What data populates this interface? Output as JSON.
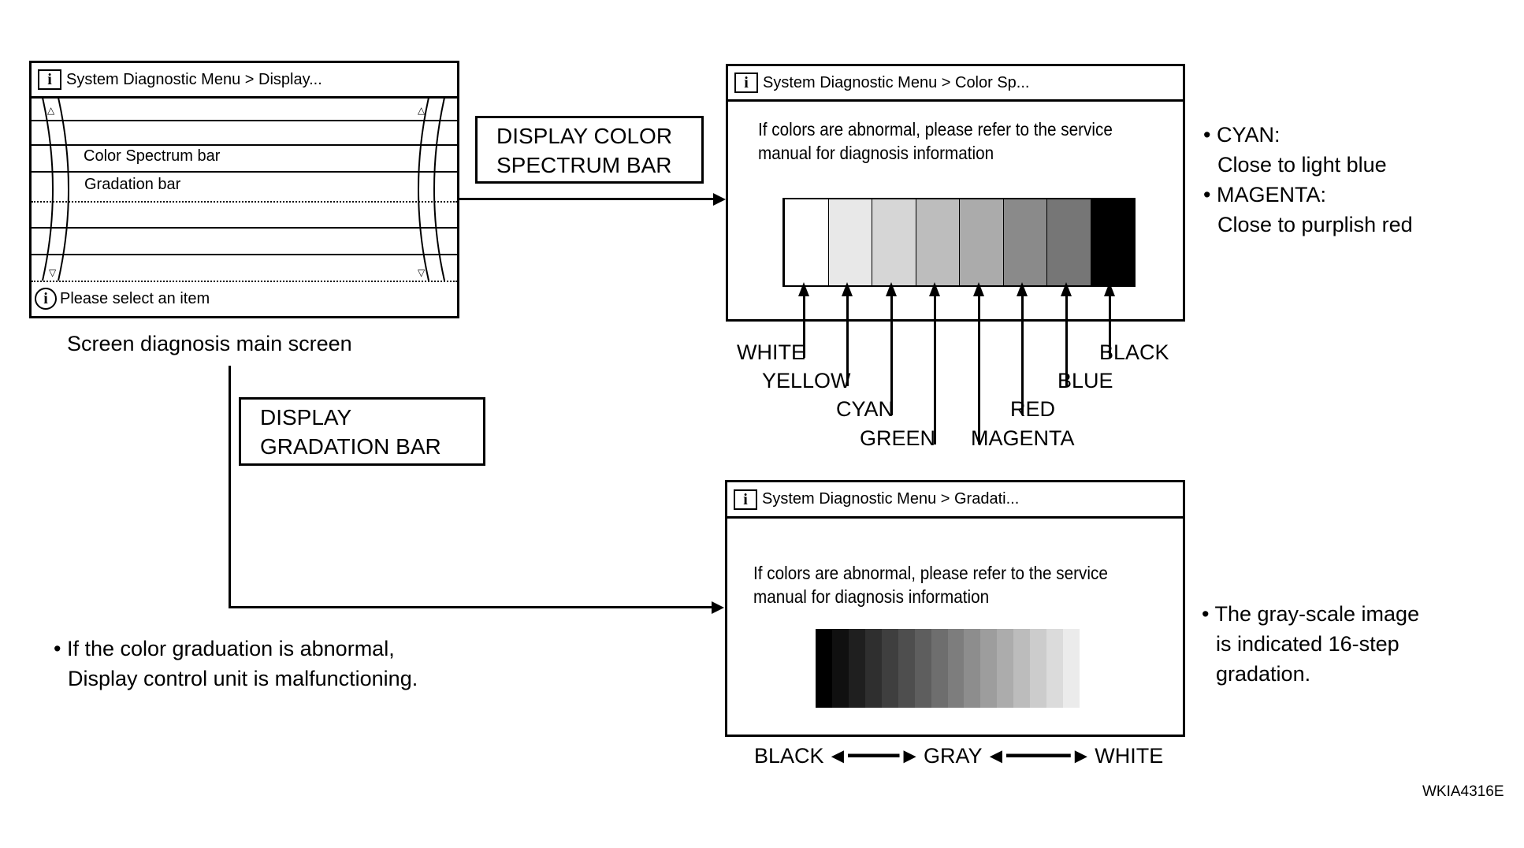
{
  "main_screen": {
    "title": "System Diagnostic Menu > Display...",
    "items": [
      "Color Spectrum bar",
      "Gradation bar"
    ],
    "footer": "Please select an item",
    "caption": "Screen diagnosis main screen"
  },
  "step_color": "DISPLAY COLOR SPECTRUM BAR",
  "step_color_lines": [
    "DISPLAY COLOR",
    "SPECTRUM BAR"
  ],
  "step_grad_lines": [
    "DISPLAY",
    "GRADATION BAR"
  ],
  "color_screen": {
    "title": "System Diagnostic Menu > Color Sp...",
    "message": [
      "If colors are abnormal, please refer to the service",
      "manual for diagnosis information"
    ],
    "bars": [
      {
        "label": "WHITE",
        "fill": "#ffffff"
      },
      {
        "label": "YELLOW",
        "fill": "#e8e8e8"
      },
      {
        "label": "CYAN",
        "fill": "#d6d6d6"
      },
      {
        "label": "GREEN",
        "fill": "#bdbdbd"
      },
      {
        "label": "MAGENTA",
        "fill": "#ababab"
      },
      {
        "label": "RED",
        "fill": "#8a8a8a"
      },
      {
        "label": "BLUE",
        "fill": "#767676"
      },
      {
        "label": "BLACK",
        "fill": "#000000"
      }
    ]
  },
  "color_notes": [
    "CYAN:",
    "Close to light blue",
    "MAGENTA:",
    "Close to purplish red"
  ],
  "grad_screen": {
    "title": "System Diagnostic Menu > Gradati...",
    "message": [
      "If colors are abnormal, please refer to the service",
      "manual for diagnosis information"
    ],
    "steps": 16
  },
  "grad_scale": {
    "left": "BLACK",
    "mid": "GRAY",
    "right": "WHITE"
  },
  "grad_notes": [
    "The gray-scale image",
    "is indicated 16-step",
    "gradation."
  ],
  "left_note": [
    "If the color graduation is abnormal,",
    "Display control unit is malfunctioning."
  ],
  "figure_id": "WKIA4316E"
}
